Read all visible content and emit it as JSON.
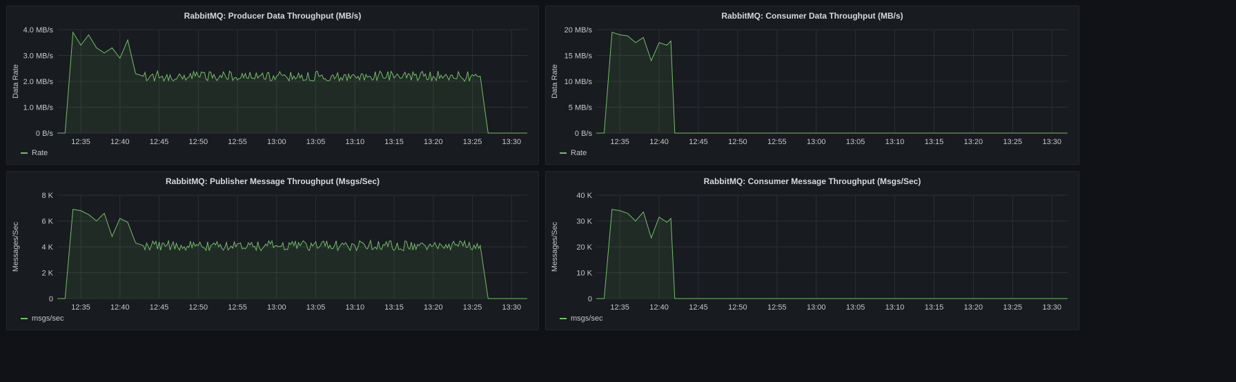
{
  "dashboard": {
    "background": "#111217",
    "panel_background": "#181b1f",
    "series_color": "#73bf69"
  },
  "panels": [
    {
      "title": "RabbitMQ: Producer Data Throughput (MB/s)",
      "legend": "Rate",
      "chart_data": {
        "type": "area",
        "title": "RabbitMQ: Producer Data Throughput (MB/s)",
        "ylabel": "Data Rate",
        "yticks": [
          {
            "v": 0,
            "label": "0 B/s"
          },
          {
            "v": 1,
            "label": "1.0 MB/s"
          },
          {
            "v": 2,
            "label": "2.0 MB/s"
          },
          {
            "v": 3,
            "label": "3.0 MB/s"
          },
          {
            "v": 4,
            "label": "4.0 MB/s"
          }
        ],
        "ylim": [
          0,
          4
        ],
        "xlim": [
          "12:32",
          "13:32"
        ],
        "xticks": [
          "12:35",
          "12:40",
          "12:45",
          "12:50",
          "12:55",
          "13:00",
          "13:05",
          "13:10",
          "13:15",
          "13:20",
          "13:25",
          "13:30"
        ],
        "grid": true,
        "legend_position": "bottom-left",
        "series": [
          {
            "name": "Rate",
            "points": [
              [
                "12:32",
                0
              ],
              [
                "12:33",
                0
              ],
              [
                "12:34",
                3.9
              ],
              [
                "12:35",
                3.4
              ],
              [
                "12:36",
                3.8
              ],
              [
                "12:37",
                3.3
              ],
              [
                "12:38",
                3.1
              ],
              [
                "12:39",
                3.3
              ],
              [
                "12:40",
                2.9
              ],
              [
                "12:41",
                3.6
              ],
              [
                "12:42",
                2.3
              ],
              [
                "12:43",
                2.2
              ],
              [
                "12:50",
                2.2
              ],
              [
                "13:00",
                2.2
              ],
              [
                "13:10",
                2.2
              ],
              [
                "13:20",
                2.2
              ],
              [
                "13:26",
                2.2
              ],
              [
                "13:27",
                0
              ],
              [
                "13:32",
                0
              ]
            ]
          }
        ]
      }
    },
    {
      "title": "RabbitMQ: Consumer Data Throughput (MB/s)",
      "legend": "Rate",
      "chart_data": {
        "type": "area",
        "title": "RabbitMQ: Consumer Data Throughput (MB/s)",
        "ylabel": "Data Rate",
        "yticks": [
          {
            "v": 0,
            "label": "0 B/s"
          },
          {
            "v": 5,
            "label": "5 MB/s"
          },
          {
            "v": 10,
            "label": "10 MB/s"
          },
          {
            "v": 15,
            "label": "15 MB/s"
          },
          {
            "v": 20,
            "label": "20 MB/s"
          }
        ],
        "ylim": [
          0,
          20
        ],
        "xlim": [
          "12:32",
          "13:32"
        ],
        "xticks": [
          "12:35",
          "12:40",
          "12:45",
          "12:50",
          "12:55",
          "13:00",
          "13:05",
          "13:10",
          "13:15",
          "13:20",
          "13:25",
          "13:30"
        ],
        "grid": true,
        "legend_position": "bottom-left",
        "series": [
          {
            "name": "Rate",
            "points": [
              [
                "12:32",
                0
              ],
              [
                "12:33",
                0
              ],
              [
                "12:34",
                19.5
              ],
              [
                "12:35",
                19.0
              ],
              [
                "12:36",
                18.8
              ],
              [
                "12:37",
                17.5
              ],
              [
                "12:38",
                18.5
              ],
              [
                "12:39",
                14.0
              ],
              [
                "12:40",
                17.5
              ],
              [
                "12:41",
                17.0
              ],
              [
                "12:41.5",
                17.8
              ],
              [
                "12:42",
                0
              ],
              [
                "13:32",
                0
              ]
            ]
          }
        ]
      }
    },
    {
      "title": "RabbitMQ: Publisher Message Throughput (Msgs/Sec)",
      "legend": "msgs/sec",
      "chart_data": {
        "type": "area",
        "title": "RabbitMQ: Publisher Message Throughput (Msgs/Sec)",
        "ylabel": "Messages/Sec",
        "yticks": [
          {
            "v": 0,
            "label": "0"
          },
          {
            "v": 2000,
            "label": "2 K"
          },
          {
            "v": 4000,
            "label": "4 K"
          },
          {
            "v": 6000,
            "label": "6 K"
          },
          {
            "v": 8000,
            "label": "8 K"
          }
        ],
        "ylim": [
          0,
          8000
        ],
        "xlim": [
          "12:32",
          "13:32"
        ],
        "xticks": [
          "12:35",
          "12:40",
          "12:45",
          "12:50",
          "12:55",
          "13:00",
          "13:05",
          "13:10",
          "13:15",
          "13:20",
          "13:25",
          "13:30"
        ],
        "grid": true,
        "legend_position": "bottom-left",
        "series": [
          {
            "name": "msgs/sec",
            "points": [
              [
                "12:32",
                0
              ],
              [
                "12:33",
                0
              ],
              [
                "12:34",
                6900
              ],
              [
                "12:35",
                6800
              ],
              [
                "12:36",
                6500
              ],
              [
                "12:37",
                6000
              ],
              [
                "12:38",
                6600
              ],
              [
                "12:39",
                4800
              ],
              [
                "12:40",
                6200
              ],
              [
                "12:41",
                5900
              ],
              [
                "12:42",
                4300
              ],
              [
                "12:43",
                4100
              ],
              [
                "12:50",
                4100
              ],
              [
                "13:00",
                4100
              ],
              [
                "13:10",
                4100
              ],
              [
                "13:20",
                4100
              ],
              [
                "13:26",
                4100
              ],
              [
                "13:27",
                0
              ],
              [
                "13:32",
                0
              ]
            ]
          }
        ]
      }
    },
    {
      "title": "RabbitMQ: Consumer Message Throughput (Msgs/Sec)",
      "legend": "msgs/sec",
      "chart_data": {
        "type": "area",
        "title": "RabbitMQ: Consumer Message Throughput (Msgs/Sec)",
        "ylabel": "Messages/Sec",
        "yticks": [
          {
            "v": 0,
            "label": "0"
          },
          {
            "v": 10000,
            "label": "10 K"
          },
          {
            "v": 20000,
            "label": "20 K"
          },
          {
            "v": 30000,
            "label": "30 K"
          },
          {
            "v": 40000,
            "label": "40 K"
          }
        ],
        "ylim": [
          0,
          40000
        ],
        "xlim": [
          "12:32",
          "13:32"
        ],
        "xticks": [
          "12:35",
          "12:40",
          "12:45",
          "12:50",
          "12:55",
          "13:00",
          "13:05",
          "13:10",
          "13:15",
          "13:20",
          "13:25",
          "13:30"
        ],
        "grid": true,
        "legend_position": "bottom-left",
        "series": [
          {
            "name": "msgs/sec",
            "points": [
              [
                "12:32",
                0
              ],
              [
                "12:33",
                0
              ],
              [
                "12:34",
                34500
              ],
              [
                "12:35",
                34000
              ],
              [
                "12:36",
                33000
              ],
              [
                "12:37",
                30000
              ],
              [
                "12:38",
                33500
              ],
              [
                "12:39",
                23500
              ],
              [
                "12:40",
                31500
              ],
              [
                "12:41",
                29500
              ],
              [
                "12:41.5",
                31000
              ],
              [
                "12:42",
                0
              ],
              [
                "13:32",
                0
              ]
            ]
          }
        ]
      }
    }
  ]
}
